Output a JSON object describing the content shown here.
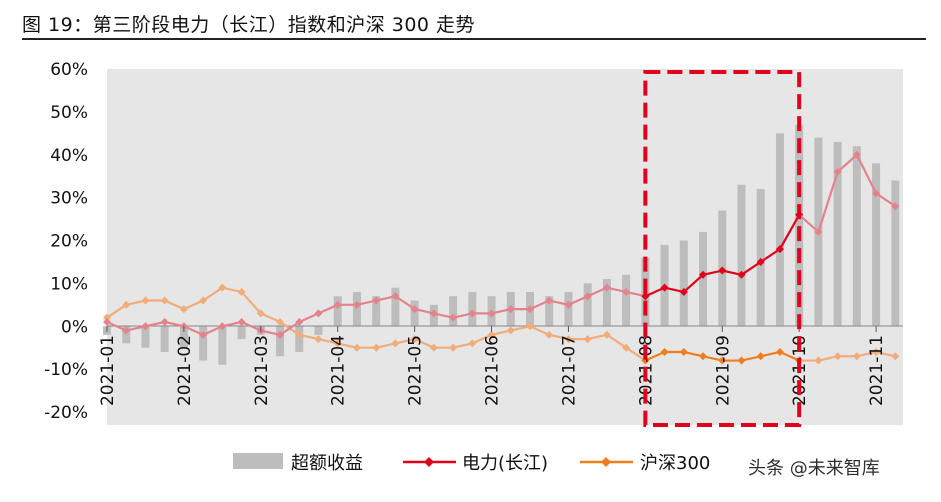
{
  "figure": {
    "title": "图 19：第三阶段电力（长江）指数和沪深 300 走势"
  },
  "watermark": "头条 @未来智库",
  "colors": {
    "excess": "#bdbdbd",
    "power": "#e0001b",
    "power_faded": "#e3838d",
    "csi300": "#f07d1e",
    "csi300_faded": "#f0ad7a",
    "plot_bg": "#e6e6e6",
    "highlight": "#e0001b"
  },
  "chart_data": {
    "type": "line",
    "ylim": [
      -0.2,
      0.6
    ],
    "yticks": [
      "60%",
      "50%",
      "40%",
      "30%",
      "20%",
      "10%",
      "0%",
      "-10%",
      "-20%"
    ],
    "x_ticks": [
      "2021-01",
      "2021-02",
      "2021-03",
      "2021-04",
      "2021-05",
      "2021-06",
      "2021-07",
      "2021-08",
      "2021-09",
      "2021-10",
      "2021-11"
    ],
    "highlight_range": [
      "2021-08",
      "2021-10"
    ],
    "legend": [
      "超额收益",
      "电力(长江)",
      "沪深300"
    ],
    "series": [
      {
        "name": "超额收益",
        "kind": "bar",
        "x": [
          0,
          0.25,
          0.5,
          0.75,
          1,
          1.25,
          1.5,
          1.75,
          2,
          2.25,
          2.5,
          2.75,
          3,
          3.25,
          3.5,
          3.75,
          4,
          4.25,
          4.5,
          4.75,
          5,
          5.25,
          5.5,
          5.75,
          6,
          6.25,
          6.5,
          6.75,
          7,
          7.25,
          7.5,
          7.75,
          8,
          8.25,
          8.5,
          8.75,
          9,
          9.25,
          9.5,
          9.75,
          10,
          10.25
        ],
        "values": [
          -0.02,
          -0.04,
          -0.05,
          -0.06,
          -0.05,
          -0.08,
          -0.09,
          -0.03,
          -0.02,
          -0.07,
          -0.06,
          -0.02,
          0.07,
          0.08,
          0.07,
          0.09,
          0.06,
          0.05,
          0.07,
          0.08,
          0.07,
          0.08,
          0.08,
          0.07,
          0.08,
          0.1,
          0.11,
          0.12,
          0.16,
          0.19,
          0.2,
          0.22,
          0.27,
          0.33,
          0.32,
          0.45,
          0.47,
          0.44,
          0.43,
          0.42,
          0.38,
          0.34
        ]
      },
      {
        "name": "电力(长江)",
        "kind": "line",
        "x": [
          0,
          0.25,
          0.5,
          0.75,
          1,
          1.25,
          1.5,
          1.75,
          2,
          2.25,
          2.5,
          2.75,
          3,
          3.25,
          3.5,
          3.75,
          4,
          4.25,
          4.5,
          4.75,
          5,
          5.25,
          5.5,
          5.75,
          6,
          6.25,
          6.5,
          6.75,
          7,
          7.25,
          7.5,
          7.75,
          8,
          8.25,
          8.5,
          8.75,
          9,
          9.25,
          9.5,
          9.75,
          10,
          10.25
        ],
        "values": [
          0.01,
          -0.01,
          0.0,
          0.01,
          0.0,
          -0.02,
          0.0,
          0.01,
          -0.01,
          -0.02,
          0.01,
          0.03,
          0.05,
          0.05,
          0.06,
          0.07,
          0.04,
          0.03,
          0.02,
          0.03,
          0.03,
          0.04,
          0.04,
          0.06,
          0.05,
          0.07,
          0.09,
          0.08,
          0.07,
          0.09,
          0.08,
          0.12,
          0.13,
          0.12,
          0.15,
          0.18,
          0.26,
          0.22,
          0.36,
          0.4,
          0.31,
          0.28
        ]
      },
      {
        "name": "沪深300",
        "kind": "line",
        "x": [
          0,
          0.25,
          0.5,
          0.75,
          1,
          1.25,
          1.5,
          1.75,
          2,
          2.25,
          2.5,
          2.75,
          3,
          3.25,
          3.5,
          3.75,
          4,
          4.25,
          4.5,
          4.75,
          5,
          5.25,
          5.5,
          5.75,
          6,
          6.25,
          6.5,
          6.75,
          7,
          7.25,
          7.5,
          7.75,
          8,
          8.25,
          8.5,
          8.75,
          9,
          9.25,
          9.5,
          9.75,
          10,
          10.25
        ],
        "values": [
          0.02,
          0.05,
          0.06,
          0.06,
          0.04,
          0.06,
          0.09,
          0.08,
          0.03,
          0.01,
          -0.02,
          -0.03,
          -0.04,
          -0.05,
          -0.05,
          -0.04,
          -0.03,
          -0.05,
          -0.05,
          -0.04,
          -0.02,
          -0.01,
          0.0,
          -0.02,
          -0.03,
          -0.03,
          -0.02,
          -0.05,
          -0.08,
          -0.06,
          -0.06,
          -0.07,
          -0.08,
          -0.08,
          -0.07,
          -0.06,
          -0.08,
          -0.08,
          -0.07,
          -0.07,
          -0.06,
          -0.07
        ]
      }
    ]
  }
}
